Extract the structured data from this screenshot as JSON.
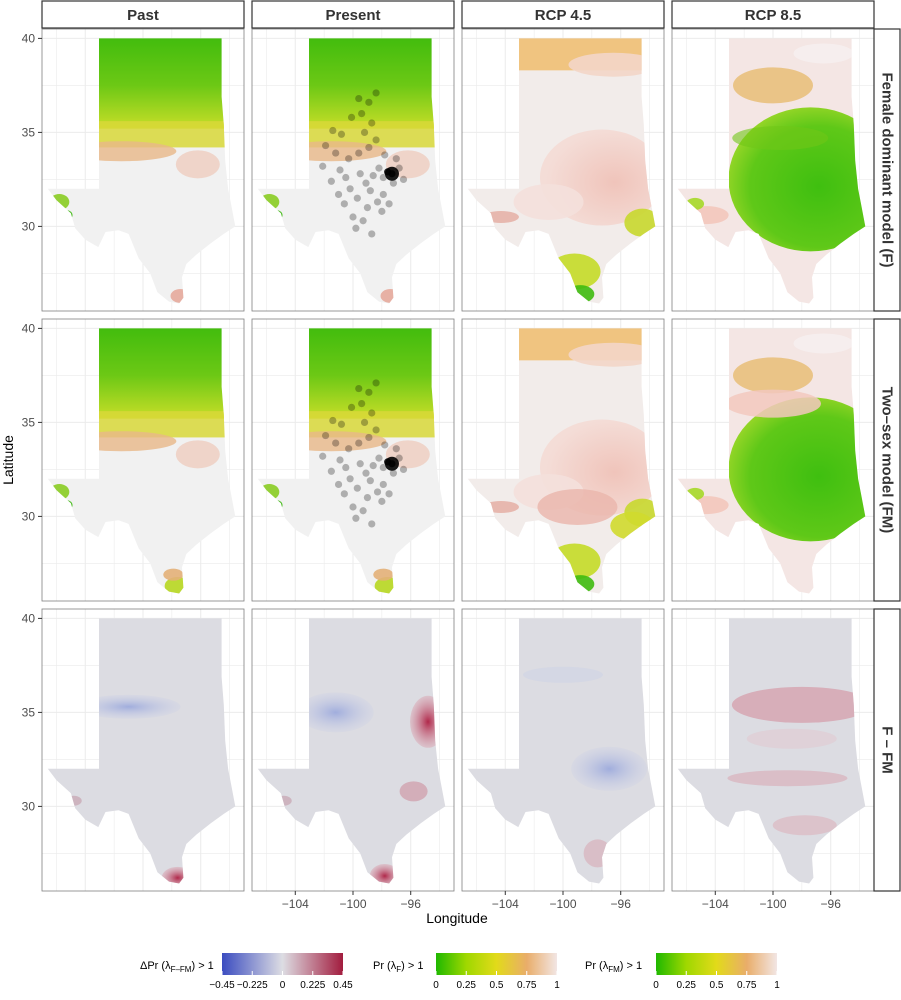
{
  "chart_data": {
    "type": "heatmap",
    "description_free": true,
    "xlabel": "Longitude",
    "ylabel": "Latitude",
    "x_ticks": [
      "−104",
      "−100",
      "−96"
    ],
    "x_tick_values": [
      -104,
      -100,
      -96
    ],
    "y_ticks": [
      "40",
      "35",
      "30"
    ],
    "y_tick_values": [
      40,
      35,
      30
    ],
    "xlim": [
      -107,
      -93
    ],
    "ylim": [
      25.5,
      40.5
    ],
    "columns": [
      "Past",
      "Present",
      "RCP 4.5",
      "RCP 8.5"
    ],
    "rows": [
      "Female dominant model (F)",
      "Two–sex model (FM)",
      "F – FM"
    ],
    "occurrence_points_lonlat": [
      [
        -97.3,
        32.8
      ],
      [
        -97.6,
        32.9
      ],
      [
        -97.9,
        32.6
      ],
      [
        -98.2,
        33.1
      ],
      [
        -98.6,
        32.7
      ],
      [
        -99.1,
        32.3
      ],
      [
        -99.5,
        32.8
      ],
      [
        -98.8,
        31.9
      ],
      [
        -97.9,
        31.7
      ],
      [
        -98.3,
        31.3
      ],
      [
        -99.0,
        31.0
      ],
      [
        -99.7,
        31.5
      ],
      [
        -100.2,
        32.0
      ],
      [
        -100.5,
        32.6
      ],
      [
        -100.9,
        33.0
      ],
      [
        -100.3,
        33.6
      ],
      [
        -99.6,
        33.9
      ],
      [
        -98.9,
        34.2
      ],
      [
        -98.4,
        34.6
      ],
      [
        -99.2,
        35.0
      ],
      [
        -98.7,
        35.5
      ],
      [
        -99.4,
        36.0
      ],
      [
        -98.9,
        36.6
      ],
      [
        -98.4,
        37.1
      ],
      [
        -99.6,
        36.8
      ],
      [
        -100.1,
        35.8
      ],
      [
        -100.8,
        34.9
      ],
      [
        -101.4,
        35.1
      ],
      [
        -101.9,
        34.3
      ],
      [
        -101.2,
        33.9
      ],
      [
        -100.6,
        31.2
      ],
      [
        -100.0,
        30.5
      ],
      [
        -99.3,
        30.3
      ],
      [
        -98.7,
        29.6
      ],
      [
        -99.8,
        29.9
      ],
      [
        -97.2,
        32.3
      ],
      [
        -96.8,
        33.1
      ],
      [
        -97.0,
        33.6
      ],
      [
        -96.5,
        32.5
      ],
      [
        -97.5,
        31.2
      ],
      [
        -98.0,
        30.8
      ],
      [
        -101.5,
        32.4
      ],
      [
        -101.0,
        31.7
      ],
      [
        -102.1,
        33.2
      ],
      [
        -97.8,
        33.8
      ]
    ],
    "legends": [
      {
        "title_main": "ΔPr (λ",
        "title_sub": "F–FM",
        "title_end": ") > 1",
        "ticks": [
          "−0.45",
          "−0.225",
          "0",
          "0.225",
          "0.45"
        ],
        "tick_values": [
          -0.45,
          -0.225,
          0,
          0.225,
          0.45
        ],
        "colors": [
          "#3b4cc0",
          "#dddde3",
          "#a21c3e"
        ]
      },
      {
        "title_main": "Pr (λ",
        "title_sub": "F",
        "title_end": ") > 1",
        "ticks": [
          "0",
          "0.25",
          "0.5",
          "0.75",
          "1"
        ],
        "tick_values": [
          0,
          0.25,
          0.5,
          0.75,
          1
        ],
        "colors": [
          "#1fb800",
          "#cde600",
          "#e8b04a",
          "#ecc2b8",
          "#f2f2f2"
        ]
      },
      {
        "title_main": "Pr (λ",
        "title_sub": "FM",
        "title_end": ") > 1",
        "ticks": [
          "0",
          "0.25",
          "0.5",
          "0.75",
          "1"
        ],
        "tick_values": [
          0,
          0.25,
          0.5,
          0.75,
          1
        ],
        "colors": [
          "#1fb800",
          "#cde600",
          "#e8b04a",
          "#ecc2b8",
          "#f2f2f2"
        ]
      }
    ],
    "grid": true
  }
}
